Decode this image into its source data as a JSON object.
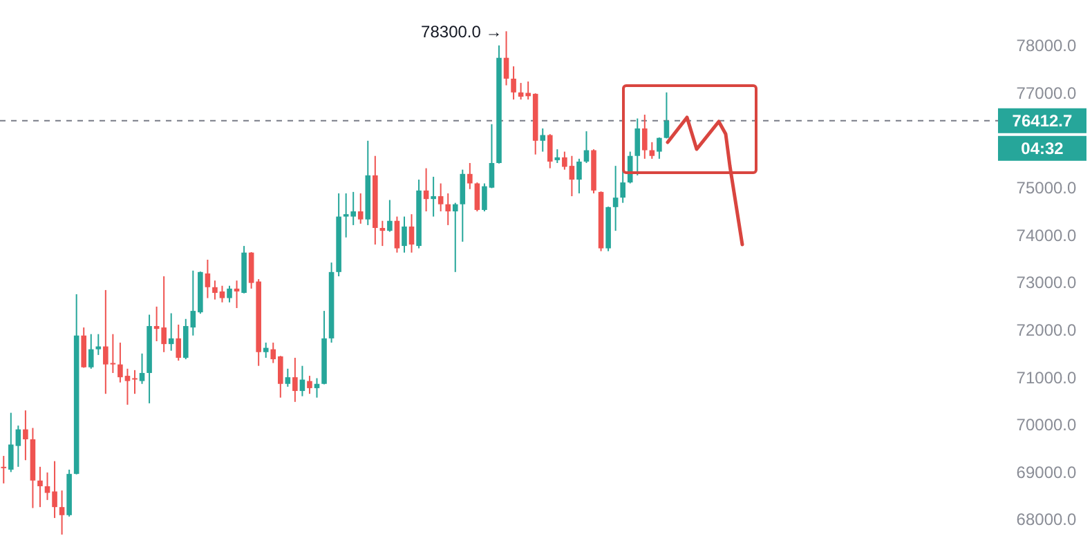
{
  "chart_data": {
    "type": "candlestick",
    "categories": [
      null,
      null,
      null,
      null,
      null,
      null,
      null,
      null,
      null,
      null,
      null,
      null,
      null,
      null,
      null,
      null,
      null,
      null,
      null,
      null,
      null,
      null,
      null,
      null,
      null,
      null,
      null,
      null,
      null,
      null,
      null,
      null,
      null,
      null,
      null,
      null,
      null,
      null,
      null,
      null,
      null,
      null,
      null,
      null,
      null,
      null,
      null,
      null,
      null,
      null,
      null,
      null,
      null,
      null,
      null,
      null,
      null,
      null,
      null,
      null,
      null,
      null,
      null,
      null,
      null,
      null,
      null,
      null,
      null,
      null,
      null,
      null,
      null,
      null,
      null,
      null,
      null,
      null,
      null,
      null,
      null,
      null,
      null,
      null,
      null,
      null,
      null,
      null,
      null,
      null,
      null,
      null,
      null,
      null,
      null,
      null,
      null,
      null,
      null,
      null,
      null,
      null,
      null,
      null,
      null,
      null,
      null,
      null,
      null,
      null,
      null,
      null,
      null,
      null,
      null,
      null,
      null,
      null,
      null,
      null,
      null,
      null,
      null,
      null,
      null,
      null,
      null,
      null,
      null,
      null,
      null,
      null,
      null,
      null,
      null,
      null,
      null
    ],
    "ohlc": [
      [
        69110,
        69340,
        68760,
        69100
      ],
      [
        69050,
        70250,
        69000,
        69580
      ],
      [
        69550,
        69980,
        69110,
        69900
      ],
      [
        69900,
        70300,
        69250,
        69690
      ],
      [
        69690,
        69930,
        68240,
        68820
      ],
      [
        68820,
        69110,
        68260,
        68700
      ],
      [
        68700,
        68990,
        68410,
        68560
      ],
      [
        68590,
        69230,
        68030,
        68260
      ],
      [
        68260,
        68610,
        67680,
        68090
      ],
      [
        68090,
        69050,
        68060,
        68960
      ],
      [
        68960,
        72750,
        68950,
        71880
      ],
      [
        71880,
        72050,
        71200,
        71210
      ],
      [
        71210,
        71910,
        71180,
        71590
      ],
      [
        71590,
        71910,
        71470,
        71650
      ],
      [
        71650,
        72840,
        70650,
        71270
      ],
      [
        71300,
        71910,
        71090,
        71290
      ],
      [
        71270,
        71730,
        70890,
        71000
      ],
      [
        71030,
        71180,
        70420,
        70920
      ],
      [
        70980,
        71150,
        70650,
        70970
      ],
      [
        70920,
        71500,
        70860,
        71090
      ],
      [
        71090,
        72320,
        70450,
        72080
      ],
      [
        72080,
        72490,
        71760,
        72020
      ],
      [
        72050,
        73130,
        71530,
        71700
      ],
      [
        71700,
        72350,
        71560,
        71820
      ],
      [
        71820,
        72110,
        71350,
        71410
      ],
      [
        71410,
        72230,
        71380,
        72080
      ],
      [
        72050,
        73250,
        71880,
        72400
      ],
      [
        72370,
        73230,
        72340,
        73220
      ],
      [
        73190,
        73480,
        72670,
        72900
      ],
      [
        72900,
        73040,
        72640,
        72780
      ],
      [
        72810,
        72930,
        72580,
        72670
      ],
      [
        72670,
        72930,
        72580,
        72870
      ],
      [
        72870,
        73040,
        72460,
        72810
      ],
      [
        72780,
        73770,
        72770,
        73630
      ],
      [
        73630,
        73640,
        72870,
        72990
      ],
      [
        73020,
        73070,
        71240,
        71530
      ],
      [
        71530,
        71730,
        71410,
        71620
      ],
      [
        71590,
        71730,
        71300,
        71380
      ],
      [
        71440,
        71450,
        70570,
        70860
      ],
      [
        70860,
        71180,
        70800,
        71000
      ],
      [
        71000,
        71410,
        70480,
        70710
      ],
      [
        70710,
        71240,
        70600,
        70950
      ],
      [
        70920,
        71030,
        70650,
        70770
      ],
      [
        70770,
        70980,
        70570,
        70860
      ],
      [
        70860,
        72400,
        70850,
        71820
      ],
      [
        71820,
        73420,
        71730,
        73220
      ],
      [
        73220,
        74880,
        73130,
        74390
      ],
      [
        74390,
        74880,
        73950,
        74440
      ],
      [
        74390,
        74910,
        74210,
        74500
      ],
      [
        74500,
        74880,
        74240,
        74330
      ],
      [
        74330,
        75990,
        74210,
        75260
      ],
      [
        75260,
        75670,
        73800,
        74150
      ],
      [
        74150,
        74300,
        73770,
        74090
      ],
      [
        74090,
        74740,
        74070,
        74300
      ],
      [
        74300,
        74390,
        73630,
        73720
      ],
      [
        73770,
        74390,
        73630,
        74180
      ],
      [
        74180,
        74440,
        73630,
        73800
      ],
      [
        73770,
        75170,
        73720,
        74940
      ],
      [
        74940,
        75410,
        74500,
        74760
      ],
      [
        74760,
        75230,
        74390,
        74820
      ],
      [
        74820,
        75090,
        74500,
        74650
      ],
      [
        74650,
        74880,
        74210,
        74500
      ],
      [
        74500,
        74680,
        73220,
        74650
      ],
      [
        74650,
        75380,
        73860,
        75290
      ],
      [
        75290,
        75520,
        74970,
        75090
      ],
      [
        75090,
        75110,
        74500,
        74530
      ],
      [
        74530,
        75090,
        74500,
        75030
      ],
      [
        75000,
        76340,
        74990,
        75520
      ],
      [
        75520,
        78000,
        75510,
        77740
      ],
      [
        77740,
        78300,
        77160,
        77300
      ],
      [
        77300,
        77560,
        76860,
        77010
      ],
      [
        77010,
        77210,
        76860,
        76920
      ],
      [
        77000,
        77240,
        76860,
        76930
      ],
      [
        76980,
        76990,
        75700,
        75990
      ],
      [
        75990,
        76250,
        75760,
        76110
      ],
      [
        76110,
        76130,
        75410,
        75550
      ],
      [
        75580,
        75810,
        75520,
        75640
      ],
      [
        75640,
        75760,
        75380,
        75440
      ],
      [
        75460,
        75670,
        74820,
        75170
      ],
      [
        75170,
        75610,
        74880,
        75550
      ],
      [
        75550,
        76190,
        75520,
        75790
      ],
      [
        75790,
        75810,
        74880,
        74940
      ],
      [
        74910,
        74920,
        73660,
        73720
      ],
      [
        73720,
        74600,
        73660,
        74590
      ],
      [
        74590,
        75460,
        74090,
        74790
      ],
      [
        74790,
        75380,
        74680,
        75110
      ],
      [
        75110,
        75760,
        75090,
        75670
      ],
      [
        75670,
        76460,
        75260,
        76250
      ],
      [
        76250,
        76540,
        75610,
        75790
      ],
      [
        75790,
        75960,
        75610,
        75670
      ],
      [
        75760,
        76060,
        75610,
        76050
      ],
      [
        76050,
        77010,
        76040,
        76412.7
      ],
      null,
      null,
      null,
      null,
      null,
      null,
      null,
      null,
      null,
      null,
      null,
      null,
      null,
      null,
      null,
      null,
      null,
      null,
      null,
      null,
      null,
      null,
      null,
      null,
      null,
      null,
      null,
      null,
      null,
      null,
      null,
      null,
      null,
      null,
      null,
      null,
      null,
      null,
      null,
      null,
      null,
      null,
      null,
      null,
      null
    ],
    "colors": [
      "#ef5350",
      "#26a69a",
      "#26a69a",
      "#ef5350",
      "#ef5350",
      "#ef5350",
      "#ef5350",
      "#ef5350",
      "#ef5350",
      "#26a69a",
      "#26a69a",
      "#ef5350",
      "#26a69a",
      "#26a69a",
      "#ef5350",
      "#ef5350",
      "#ef5350",
      "#ef5350",
      "#ef5350",
      "#26a69a",
      "#26a69a",
      "#ef5350",
      "#ef5350",
      "#26a69a",
      "#ef5350",
      "#26a69a",
      "#26a69a",
      "#26a69a",
      "#ef5350",
      "#ef5350",
      "#ef5350",
      "#26a69a",
      "#ef5350",
      "#26a69a",
      "#ef5350",
      "#ef5350",
      "#26a69a",
      "#ef5350",
      "#ef5350",
      "#26a69a",
      "#ef5350",
      "#26a69a",
      "#ef5350",
      "#26a69a",
      "#26a69a",
      "#26a69a",
      "#26a69a",
      "#26a69a",
      "#26a69a",
      "#ef5350",
      "#26a69a",
      "#ef5350",
      "#ef5350",
      "#26a69a",
      "#ef5350",
      "#26a69a",
      "#ef5350",
      "#26a69a",
      "#ef5350",
      "#26a69a",
      "#ef5350",
      "#ef5350",
      "#26a69a",
      "#26a69a",
      "#ef5350",
      "#ef5350",
      "#26a69a",
      "#26a69a",
      "#26a69a",
      "#ef5350",
      "#ef5350",
      "#ef5350",
      "#ef5350",
      "#ef5350",
      "#26a69a",
      "#ef5350",
      "#26a69a",
      "#ef5350",
      "#ef5350",
      "#26a69a",
      "#26a69a",
      "#ef5350",
      "#ef5350",
      "#26a69a",
      "#26a69a",
      "#26a69a",
      "#26a69a",
      "#26a69a",
      "#ef5350",
      "#ef5350",
      "#26a69a",
      "#26a69a",
      null,
      null,
      null,
      null,
      null,
      null,
      null,
      null,
      null,
      null,
      null,
      null,
      null,
      null,
      null,
      null,
      null,
      null,
      null,
      null,
      null,
      null,
      null,
      null,
      null,
      null,
      null,
      null,
      null,
      null,
      null,
      null,
      null,
      null,
      null,
      null,
      null,
      null,
      null,
      null,
      null,
      null,
      null,
      null,
      null
    ],
    "ylim": [
      67650,
      78960
    ],
    "yticks": [
      {
        "value": 68000,
        "label": "68000.0"
      },
      {
        "value": 69000,
        "label": "69000.0"
      },
      {
        "value": 70000,
        "label": "70000.0"
      },
      {
        "value": 71000,
        "label": "71000.0"
      },
      {
        "value": 72000,
        "label": "72000.0"
      },
      {
        "value": 73000,
        "label": "73000.0"
      },
      {
        "value": 74000,
        "label": "74000.0"
      },
      {
        "value": 75000,
        "label": "75000.0"
      },
      {
        "value": 77000,
        "label": "77000.0"
      },
      {
        "value": 78000,
        "label": "78000.0"
      }
    ],
    "tick_labels": "y",
    "ref_lines": [
      {
        "axis": "y",
        "value": 76412.7,
        "label": "76412.7",
        "color": "#787b86",
        "line_style": "dashed"
      }
    ],
    "annotations": [
      "78300.0 →",
      "04:32"
    ]
  }
}
